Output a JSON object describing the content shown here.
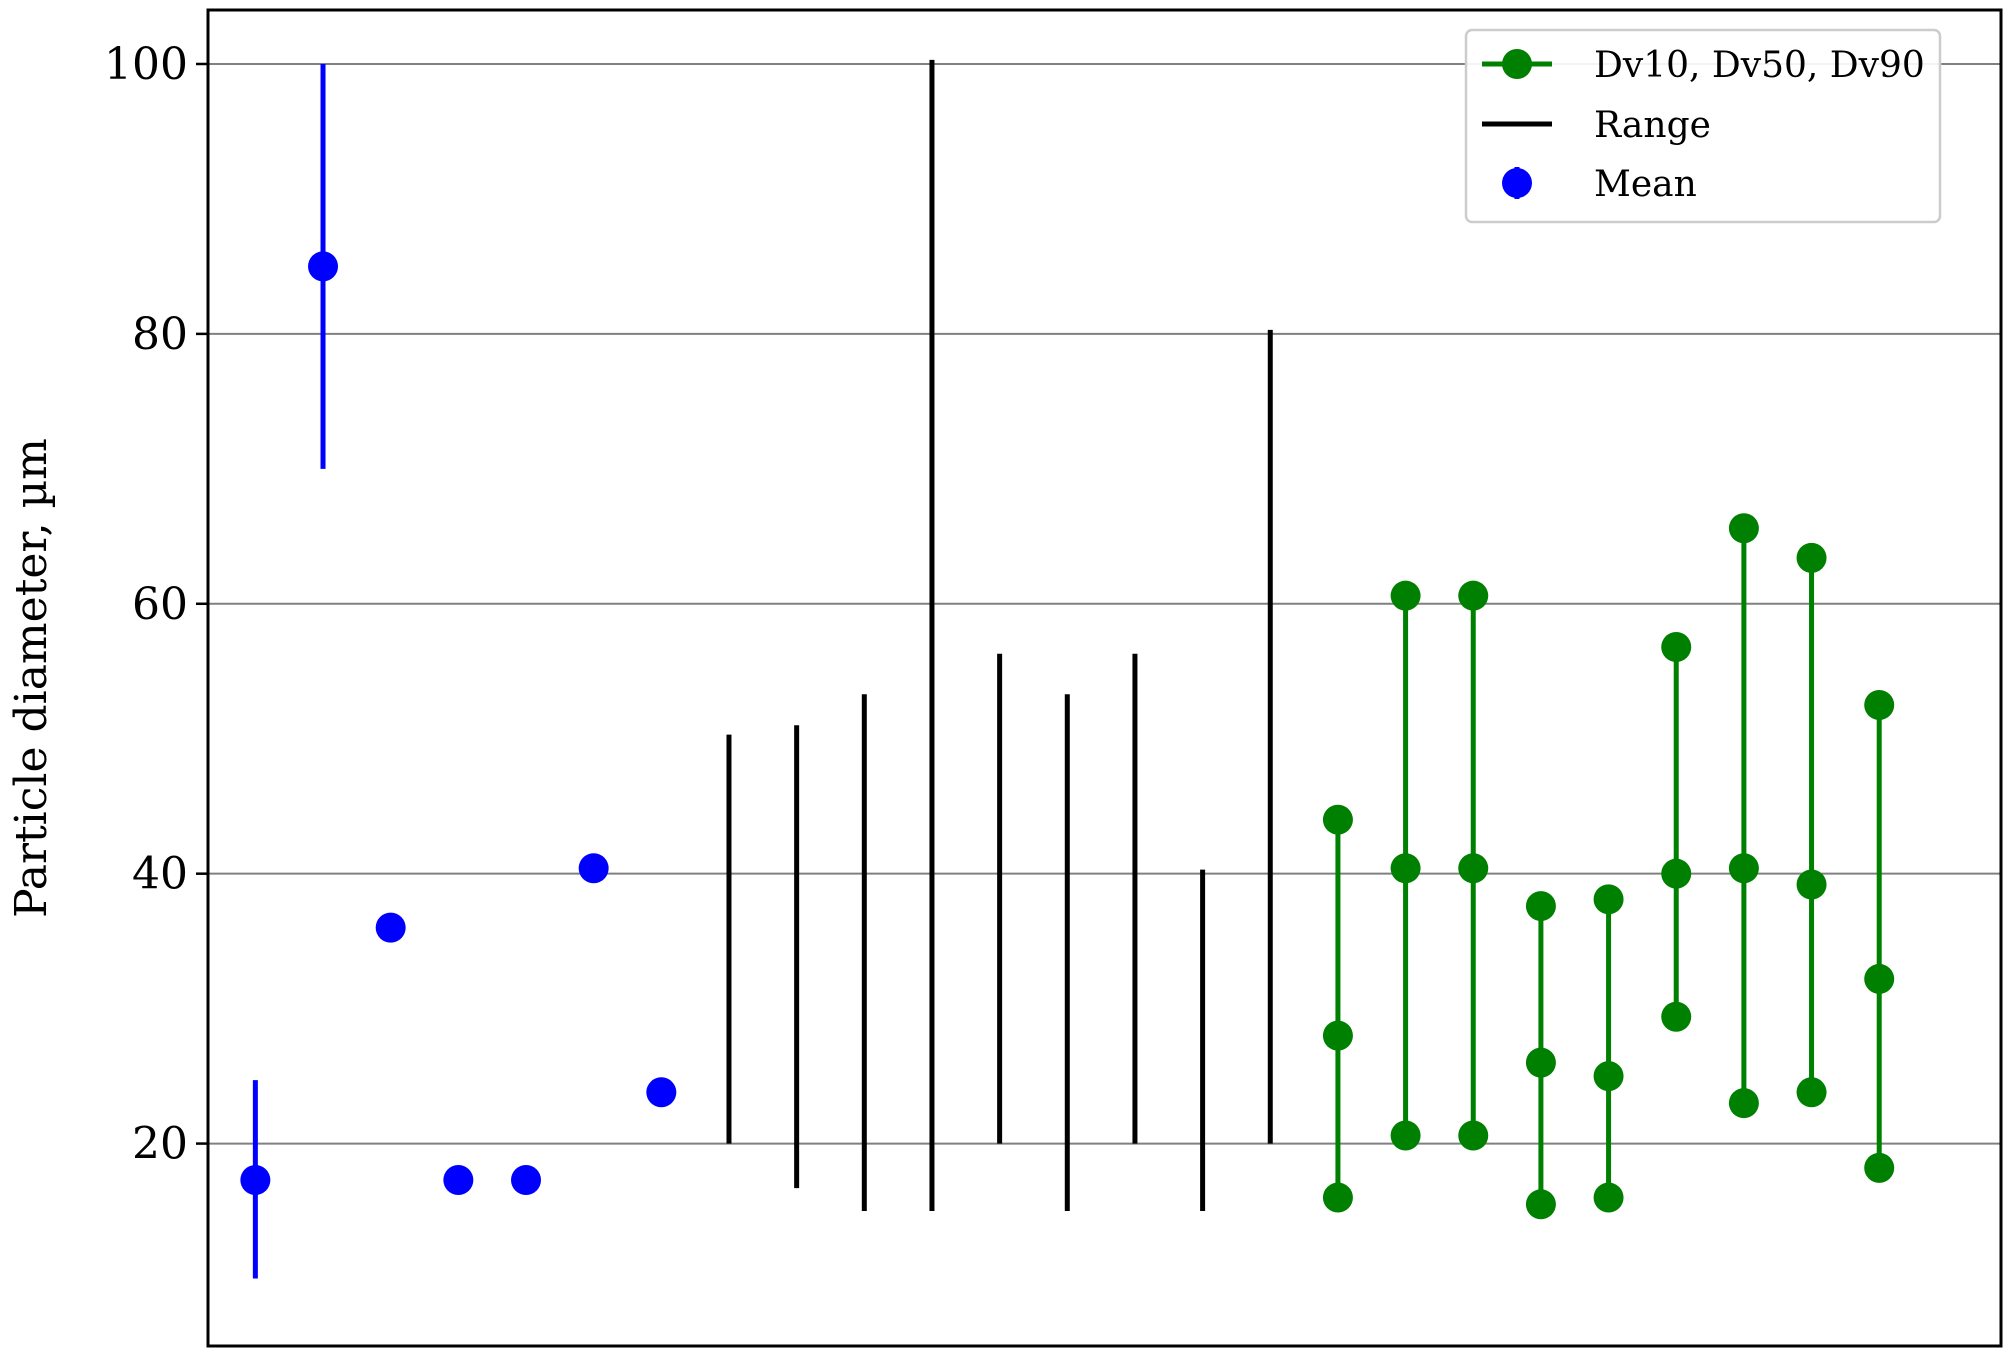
{
  "chart_data": {
    "type": "scatter",
    "ylabel": "Particle diameter, µm",
    "xlabel": "",
    "title": "",
    "ylim": [
      5,
      104
    ],
    "xlim": [
      0.3,
      26.8
    ],
    "yticks": [
      20,
      40,
      60,
      80,
      100
    ],
    "xticks": [],
    "grid": "horizontal",
    "legend_placement": "top-right",
    "colors": {
      "mean": "#0000ff",
      "range": "#000000",
      "dv": "#008000",
      "grid": "#808080"
    },
    "series": [
      {
        "name": "Mean",
        "kind": "mean_with_error",
        "points": [
          {
            "x": 1,
            "y": 17.3,
            "err_low": 10.0,
            "err_high": 24.7
          },
          {
            "x": 2,
            "y": 85.0,
            "err_low": 70.0,
            "err_high": 100.0
          },
          {
            "x": 3,
            "y": 36.0
          },
          {
            "x": 4,
            "y": 17.3
          },
          {
            "x": 5,
            "y": 17.3
          },
          {
            "x": 6,
            "y": 40.4
          },
          {
            "x": 7,
            "y": 23.8
          }
        ]
      },
      {
        "name": "Range",
        "kind": "range",
        "points": [
          {
            "x": 8,
            "low": 20.0,
            "high": 50.3
          },
          {
            "x": 9,
            "low": 16.7,
            "high": 51.0
          },
          {
            "x": 10,
            "low": 15.0,
            "high": 53.3
          },
          {
            "x": 11,
            "low": 15.0,
            "high": 100.3
          },
          {
            "x": 12,
            "low": 20.0,
            "high": 56.3
          },
          {
            "x": 13,
            "low": 15.0,
            "high": 53.3
          },
          {
            "x": 14,
            "low": 20.0,
            "high": 56.3
          },
          {
            "x": 15,
            "low": 15.0,
            "high": 40.3
          },
          {
            "x": 16,
            "low": 20.0,
            "high": 80.3
          }
        ]
      },
      {
        "name": "Dv10, Dv50, Dv90",
        "kind": "dv",
        "points": [
          {
            "x": 17,
            "dv10": 16.0,
            "dv50": 28.0,
            "dv90": 44.0
          },
          {
            "x": 18,
            "dv10": 20.6,
            "dv50": 40.4,
            "dv90": 60.6
          },
          {
            "x": 19,
            "dv10": 20.6,
            "dv50": 40.4,
            "dv90": 60.6
          },
          {
            "x": 20,
            "dv10": 15.5,
            "dv50": 26.0,
            "dv90": 37.6
          },
          {
            "x": 21,
            "dv10": 16.0,
            "dv50": 25.0,
            "dv90": 38.1
          },
          {
            "x": 22,
            "dv10": 29.4,
            "dv50": 40.0,
            "dv90": 56.8
          },
          {
            "x": 23,
            "dv10": 23.0,
            "dv50": 40.4,
            "dv90": 65.6
          },
          {
            "x": 24,
            "dv10": 23.8,
            "dv50": 39.2,
            "dv90": 63.4
          },
          {
            "x": 25,
            "dv10": 18.2,
            "dv50": 32.2,
            "dv90": 52.5
          }
        ]
      }
    ],
    "legend": [
      {
        "label": "Dv10, Dv50, Dv90",
        "symbol": "line-marker"
      },
      {
        "label": "Range",
        "symbol": "line"
      },
      {
        "label": "Mean",
        "symbol": "errorbar-marker"
      }
    ]
  }
}
